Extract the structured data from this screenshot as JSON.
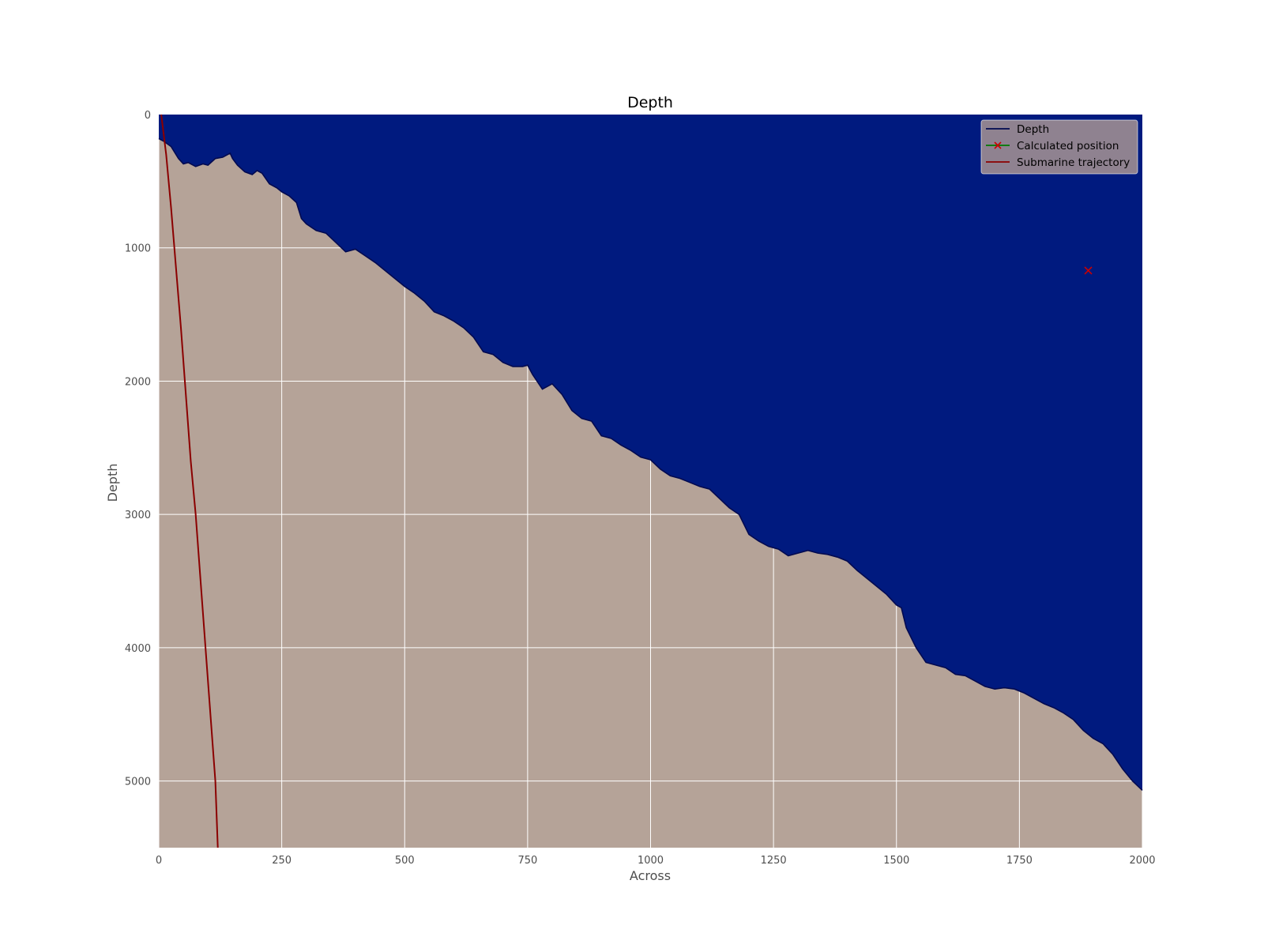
{
  "chart_data": {
    "type": "area",
    "title": "Depth",
    "xlabel": "Across",
    "ylabel": "Depth",
    "xlim": [
      0,
      2000
    ],
    "ylim": [
      5500,
      0
    ],
    "y_inverted": true,
    "grid": true,
    "xticks": [
      0,
      250,
      500,
      750,
      1000,
      1250,
      1500,
      1750,
      2000
    ],
    "yticks": [
      0,
      1000,
      2000,
      3000,
      4000,
      5000
    ],
    "legend_position": "top-right",
    "colors": {
      "water": "#001a7f",
      "seabed": "#b5a398",
      "depth_line": "#000a50",
      "trajectory": "#8b0000",
      "calculated_position": "#cc0000",
      "calculated_position_legend_line": "#007a00",
      "grid": "#ffffff",
      "legend_bg": "#8f8290"
    },
    "series": [
      {
        "name": "Depth",
        "type": "area",
        "x": [
          0,
          10,
          25,
          40,
          50,
          60,
          75,
          90,
          100,
          115,
          130,
          145,
          150,
          160,
          175,
          190,
          200,
          210,
          225,
          240,
          250,
          265,
          280,
          290,
          300,
          320,
          340,
          360,
          380,
          400,
          420,
          440,
          460,
          480,
          500,
          520,
          540,
          560,
          580,
          600,
          620,
          640,
          660,
          680,
          700,
          720,
          740,
          750,
          760,
          780,
          800,
          820,
          840,
          860,
          880,
          900,
          920,
          940,
          960,
          980,
          1000,
          1020,
          1040,
          1060,
          1080,
          1100,
          1120,
          1140,
          1160,
          1180,
          1200,
          1220,
          1240,
          1260,
          1280,
          1300,
          1320,
          1340,
          1360,
          1380,
          1400,
          1420,
          1440,
          1460,
          1480,
          1500,
          1510,
          1520,
          1540,
          1560,
          1580,
          1600,
          1620,
          1640,
          1660,
          1680,
          1700,
          1720,
          1740,
          1760,
          1780,
          1800,
          1820,
          1840,
          1860,
          1880,
          1900,
          1920,
          1940,
          1960,
          1980,
          2000
        ],
        "values": [
          180,
          200,
          240,
          330,
          370,
          360,
          390,
          370,
          380,
          330,
          320,
          290,
          330,
          380,
          430,
          450,
          420,
          440,
          520,
          550,
          580,
          610,
          660,
          780,
          820,
          870,
          890,
          960,
          1030,
          1010,
          1060,
          1110,
          1170,
          1230,
          1290,
          1340,
          1400,
          1480,
          1510,
          1550,
          1600,
          1670,
          1780,
          1800,
          1860,
          1890,
          1890,
          1880,
          1950,
          2060,
          2020,
          2100,
          2220,
          2280,
          2300,
          2410,
          2430,
          2480,
          2520,
          2570,
          2590,
          2660,
          2710,
          2730,
          2760,
          2790,
          2810,
          2880,
          2950,
          3000,
          3150,
          3200,
          3240,
          3260,
          3310,
          3290,
          3270,
          3290,
          3300,
          3320,
          3350,
          3420,
          3480,
          3540,
          3600,
          3680,
          3700,
          3850,
          4000,
          4110,
          4130,
          4150,
          4200,
          4210,
          4250,
          4290,
          4310,
          4300,
          4310,
          4340,
          4380,
          4420,
          4450,
          4490,
          4540,
          4620,
          4680,
          4720,
          4800,
          4910,
          5000,
          5070
        ]
      },
      {
        "name": "Calculated position",
        "type": "scatter",
        "marker": "x",
        "x": [
          1890
        ],
        "y": [
          1170
        ]
      },
      {
        "name": "Submarine trajectory",
        "type": "line",
        "x": [
          5,
          15,
          25,
          35,
          45,
          55,
          65,
          75,
          85,
          95,
          105,
          115,
          120
        ],
        "y": [
          0,
          300,
          700,
          1150,
          1600,
          2100,
          2600,
          3000,
          3500,
          4000,
          4500,
          5000,
          5500
        ]
      }
    ]
  }
}
